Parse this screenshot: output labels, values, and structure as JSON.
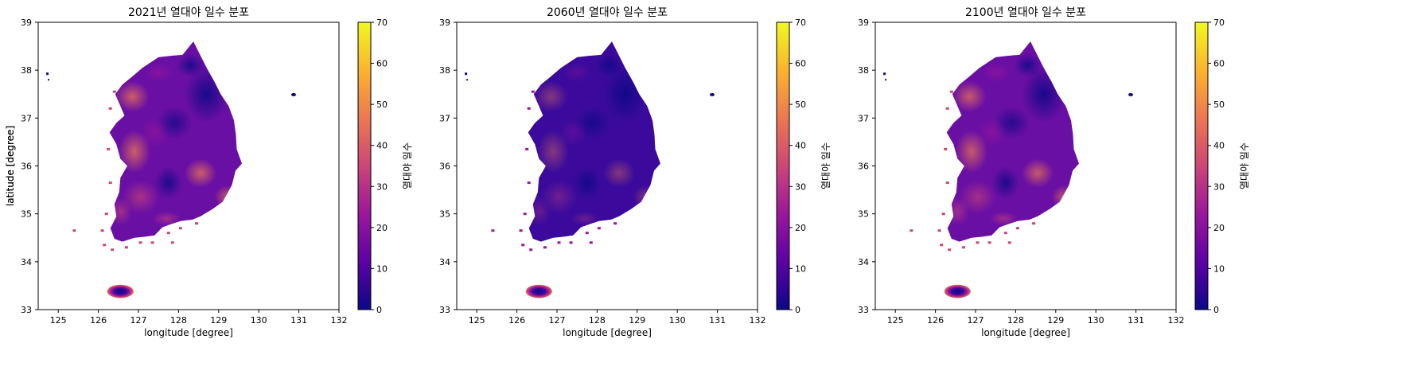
{
  "chart_data": [
    {
      "type": "heatmap",
      "title": "2021년 열대야 일수 분포",
      "xlabel": "longitude [degree]",
      "ylabel": "latitude [degree]",
      "xlim": [
        124.5,
        132
      ],
      "ylim": [
        33,
        39
      ],
      "xticks": [
        "125",
        "126",
        "127",
        "128",
        "129",
        "130",
        "131",
        "132"
      ],
      "yticks": [
        "33",
        "34",
        "35",
        "36",
        "37",
        "38",
        "39"
      ],
      "colorbar": {
        "label": "열대야 일수",
        "ticks": [
          "0",
          "10",
          "20",
          "30",
          "40",
          "50",
          "60",
          "70"
        ],
        "range": [
          0,
          70
        ],
        "colormap": "plasma"
      },
      "intensity": 1.0
    },
    {
      "type": "heatmap",
      "title": "2060년 열대야 일수 분포",
      "xlabel": "longitude [degree]",
      "ylabel": "latitude [degree]",
      "xlim": [
        124.5,
        132
      ],
      "ylim": [
        33,
        39
      ],
      "xticks": [
        "125",
        "126",
        "127",
        "128",
        "129",
        "130",
        "131",
        "132"
      ],
      "yticks": [
        "33",
        "34",
        "35",
        "36",
        "37",
        "38",
        "39"
      ],
      "colorbar": {
        "label": "열대야 일수",
        "ticks": [
          "0",
          "10",
          "20",
          "30",
          "40",
          "50",
          "60",
          "70"
        ],
        "range": [
          0,
          70
        ],
        "colormap": "plasma"
      },
      "intensity": 0.55
    },
    {
      "type": "heatmap",
      "title": "2100년 열대야 일수 분포",
      "xlabel": "longitude [degree]",
      "ylabel": "latitude [degree]",
      "xlim": [
        124.5,
        132
      ],
      "ylim": [
        33,
        39
      ],
      "xticks": [
        "125",
        "126",
        "127",
        "128",
        "129",
        "130",
        "131",
        "132"
      ],
      "yticks": [
        "33",
        "34",
        "35",
        "36",
        "37",
        "38",
        "39"
      ],
      "colorbar": {
        "label": "열대야 일수",
        "ticks": [
          "0",
          "10",
          "20",
          "30",
          "40",
          "50",
          "60",
          "70"
        ],
        "range": [
          0,
          70
        ],
        "colormap": "plasma"
      },
      "intensity": 0.95
    }
  ],
  "colors": {
    "plasma": [
      "#0d0887",
      "#5b02a3",
      "#9a179b",
      "#cb4678",
      "#eb7852",
      "#fbb32f",
      "#f0f921"
    ]
  }
}
